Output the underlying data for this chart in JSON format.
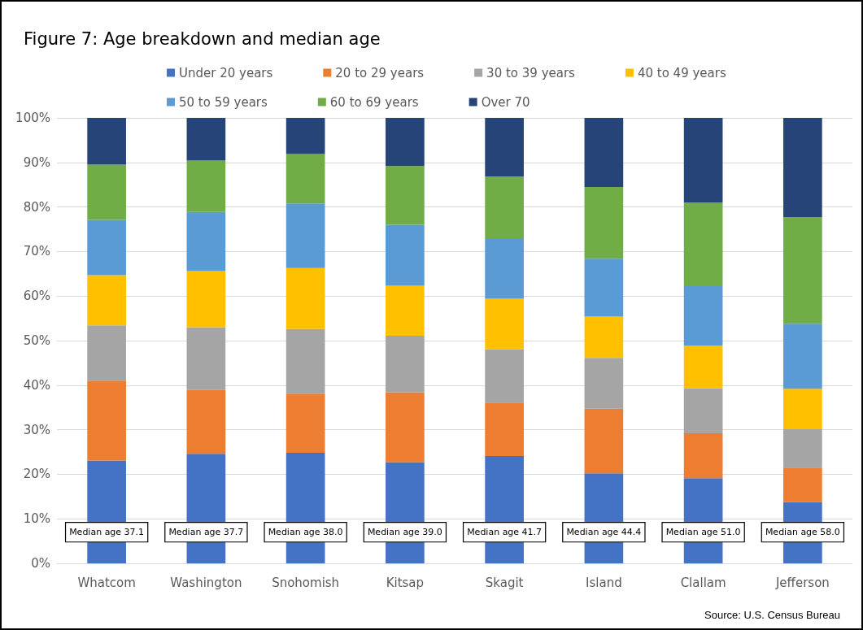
{
  "chart_data": {
    "type": "bar",
    "title": "Figure 7: Age breakdown and median age",
    "stacked": true,
    "categories": [
      "Whatcom",
      "Washington",
      "Snohomish",
      "Kitsap",
      "Skagit",
      "Island",
      "Clallam",
      "Jefferson"
    ],
    "series": [
      {
        "name": "Under 20 years",
        "color": "#4472c4",
        "values": [
          23.1,
          24.6,
          24.8,
          22.7,
          24.1,
          20.2,
          19.1,
          13.8
        ]
      },
      {
        "name": "20 to 29 years",
        "color": "#ed7d31",
        "values": [
          17.9,
          14.3,
          13.3,
          15.7,
          12.0,
          14.5,
          10.1,
          7.7
        ]
      },
      {
        "name": "30 to 39 years",
        "color": "#a5a5a5",
        "values": [
          12.4,
          14.1,
          14.5,
          12.7,
          12.0,
          11.4,
          10.1,
          8.6
        ]
      },
      {
        "name": "40 to 49 years",
        "color": "#ffc000",
        "values": [
          11.3,
          12.6,
          13.7,
          11.2,
          11.3,
          9.3,
          9.6,
          9.1
        ]
      },
      {
        "name": "50 to 59 years",
        "color": "#5b9bd5",
        "values": [
          12.4,
          13.3,
          14.5,
          13.7,
          13.4,
          13.0,
          13.5,
          14.6
        ]
      },
      {
        "name": "60 to 69 years",
        "color": "#70ad47",
        "values": [
          12.4,
          11.5,
          11.1,
          13.2,
          14.0,
          16.1,
          18.6,
          23.9
        ]
      },
      {
        "name": "Over 70",
        "color": "#264478",
        "values": [
          10.5,
          9.6,
          8.1,
          10.8,
          13.2,
          15.5,
          19.0,
          22.3
        ]
      }
    ],
    "ylim": [
      0,
      100
    ],
    "yticks": [
      {
        "value": 0,
        "label": "0%"
      },
      {
        "value": 10,
        "label": "10%"
      },
      {
        "value": 20,
        "label": "20%"
      },
      {
        "value": 30,
        "label": "30%"
      },
      {
        "value": 40,
        "label": "40%"
      },
      {
        "value": 50,
        "label": "50%"
      },
      {
        "value": 60,
        "label": "60%"
      },
      {
        "value": 70,
        "label": "70%"
      },
      {
        "value": 80,
        "label": "80%"
      },
      {
        "value": 90,
        "label": "90%"
      },
      {
        "value": 100,
        "label": "100%"
      }
    ],
    "grid": "y",
    "legend": "top",
    "annotations": [
      "Median age 37.1",
      "Median age 37.7",
      "Median age 38.0",
      "Median age 39.0",
      "Median age 41.7",
      "Median age 44.4",
      "Median age 51.0",
      "Median age 58.0",
      "Source: U.S. Census Bureau"
    ]
  }
}
